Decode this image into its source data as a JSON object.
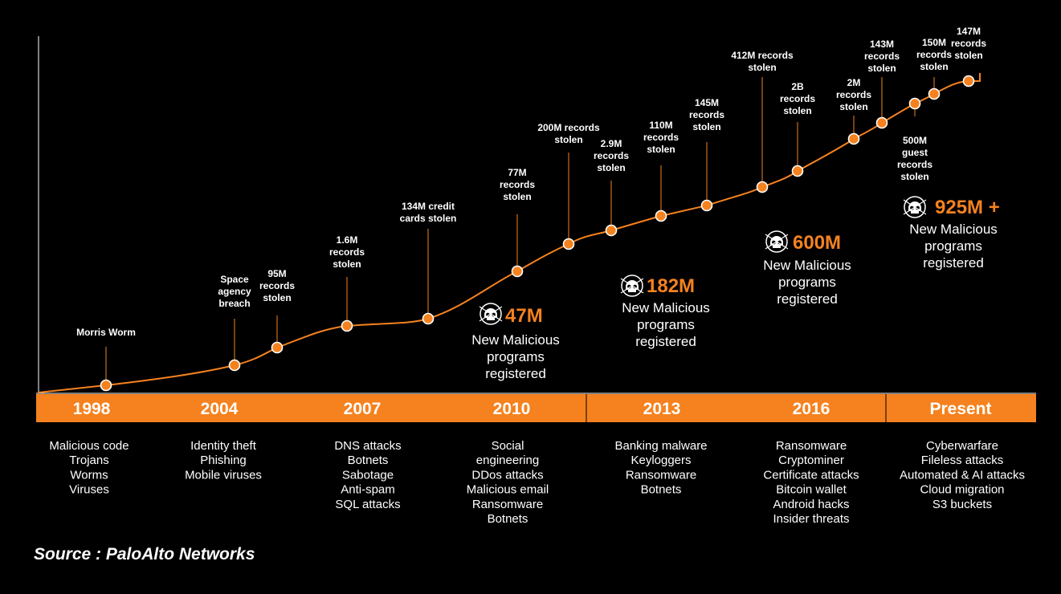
{
  "colors": {
    "accent": "#f5821f",
    "background": "#000000",
    "text": "#ffffff"
  },
  "events": [
    {
      "label": [
        "Morris Worm"
      ]
    },
    {
      "label": [
        "Space",
        "agency",
        "breach"
      ]
    },
    {
      "label": [
        "95M",
        "records",
        "stolen"
      ]
    },
    {
      "label": [
        "1.6M",
        "records",
        "stolen"
      ]
    },
    {
      "label": [
        "134M credit",
        "cards stolen"
      ]
    },
    {
      "label": [
        "77M",
        "records",
        "stolen"
      ]
    },
    {
      "label": [
        "200M records",
        "stolen"
      ]
    },
    {
      "label": [
        "2.9M",
        "records",
        "stolen"
      ]
    },
    {
      "label": [
        "110M",
        "records",
        "stolen"
      ]
    },
    {
      "label": [
        "145M",
        "records",
        "stolen"
      ]
    },
    {
      "label": [
        "412M records",
        "stolen"
      ]
    },
    {
      "label": [
        "2B",
        "records",
        "stolen"
      ]
    },
    {
      "label": [
        "2M",
        "records",
        "stolen"
      ]
    },
    {
      "label": [
        "143M",
        "records",
        "stolen"
      ]
    },
    {
      "label": [
        "500M",
        "guest",
        "records",
        "stolen"
      ]
    },
    {
      "label": [
        "150M",
        "records",
        "stolen"
      ]
    },
    {
      "label": [
        "147M",
        "records",
        "stolen"
      ]
    }
  ],
  "malware_counts": [
    {
      "value": "47M",
      "icon": "skull-icon",
      "text": [
        "New Malicious",
        "programs",
        "registered"
      ]
    },
    {
      "value": "182M",
      "icon": "skull-icon",
      "text": [
        "New Malicious",
        "programs",
        "registered"
      ]
    },
    {
      "value": "600M",
      "icon": "skull-icon",
      "text": [
        "New Malicious",
        "programs",
        "registered"
      ]
    },
    {
      "value": "925M +",
      "icon": "skull-icon",
      "text": [
        "New Malicious",
        "programs",
        "registered"
      ]
    }
  ],
  "eras": [
    {
      "year": "1998",
      "threats": [
        "Malicious code",
        "Trojans",
        "Worms",
        "Viruses"
      ]
    },
    {
      "year": "2004",
      "threats": [
        "Identity theft",
        "Phishing",
        "Mobile viruses"
      ]
    },
    {
      "year": "2007",
      "threats": [
        "DNS attacks",
        "Botnets",
        "Sabotage",
        "Anti-spam",
        "SQL attacks"
      ]
    },
    {
      "year": "2010",
      "threats": [
        "Social",
        "engineering",
        "DDos attacks",
        "Malicious email",
        "Ransomware",
        "Botnets"
      ]
    },
    {
      "year": "2013",
      "threats": [
        "Banking malware",
        "Keyloggers",
        "Ransomware",
        "Botnets"
      ]
    },
    {
      "year": "2016",
      "threats": [
        "Ransomware",
        "Cryptominer",
        "Certificate attacks",
        "Bitcoin wallet",
        "Android hacks",
        "Insider threats"
      ]
    },
    {
      "year": "Present",
      "threats": [
        "Cyberwarfare",
        "Fileless attacks",
        "Automated & AI attacks",
        "Cloud migration",
        "S3 buckets"
      ]
    }
  ],
  "source": "Source : PaloAlto Networks"
}
